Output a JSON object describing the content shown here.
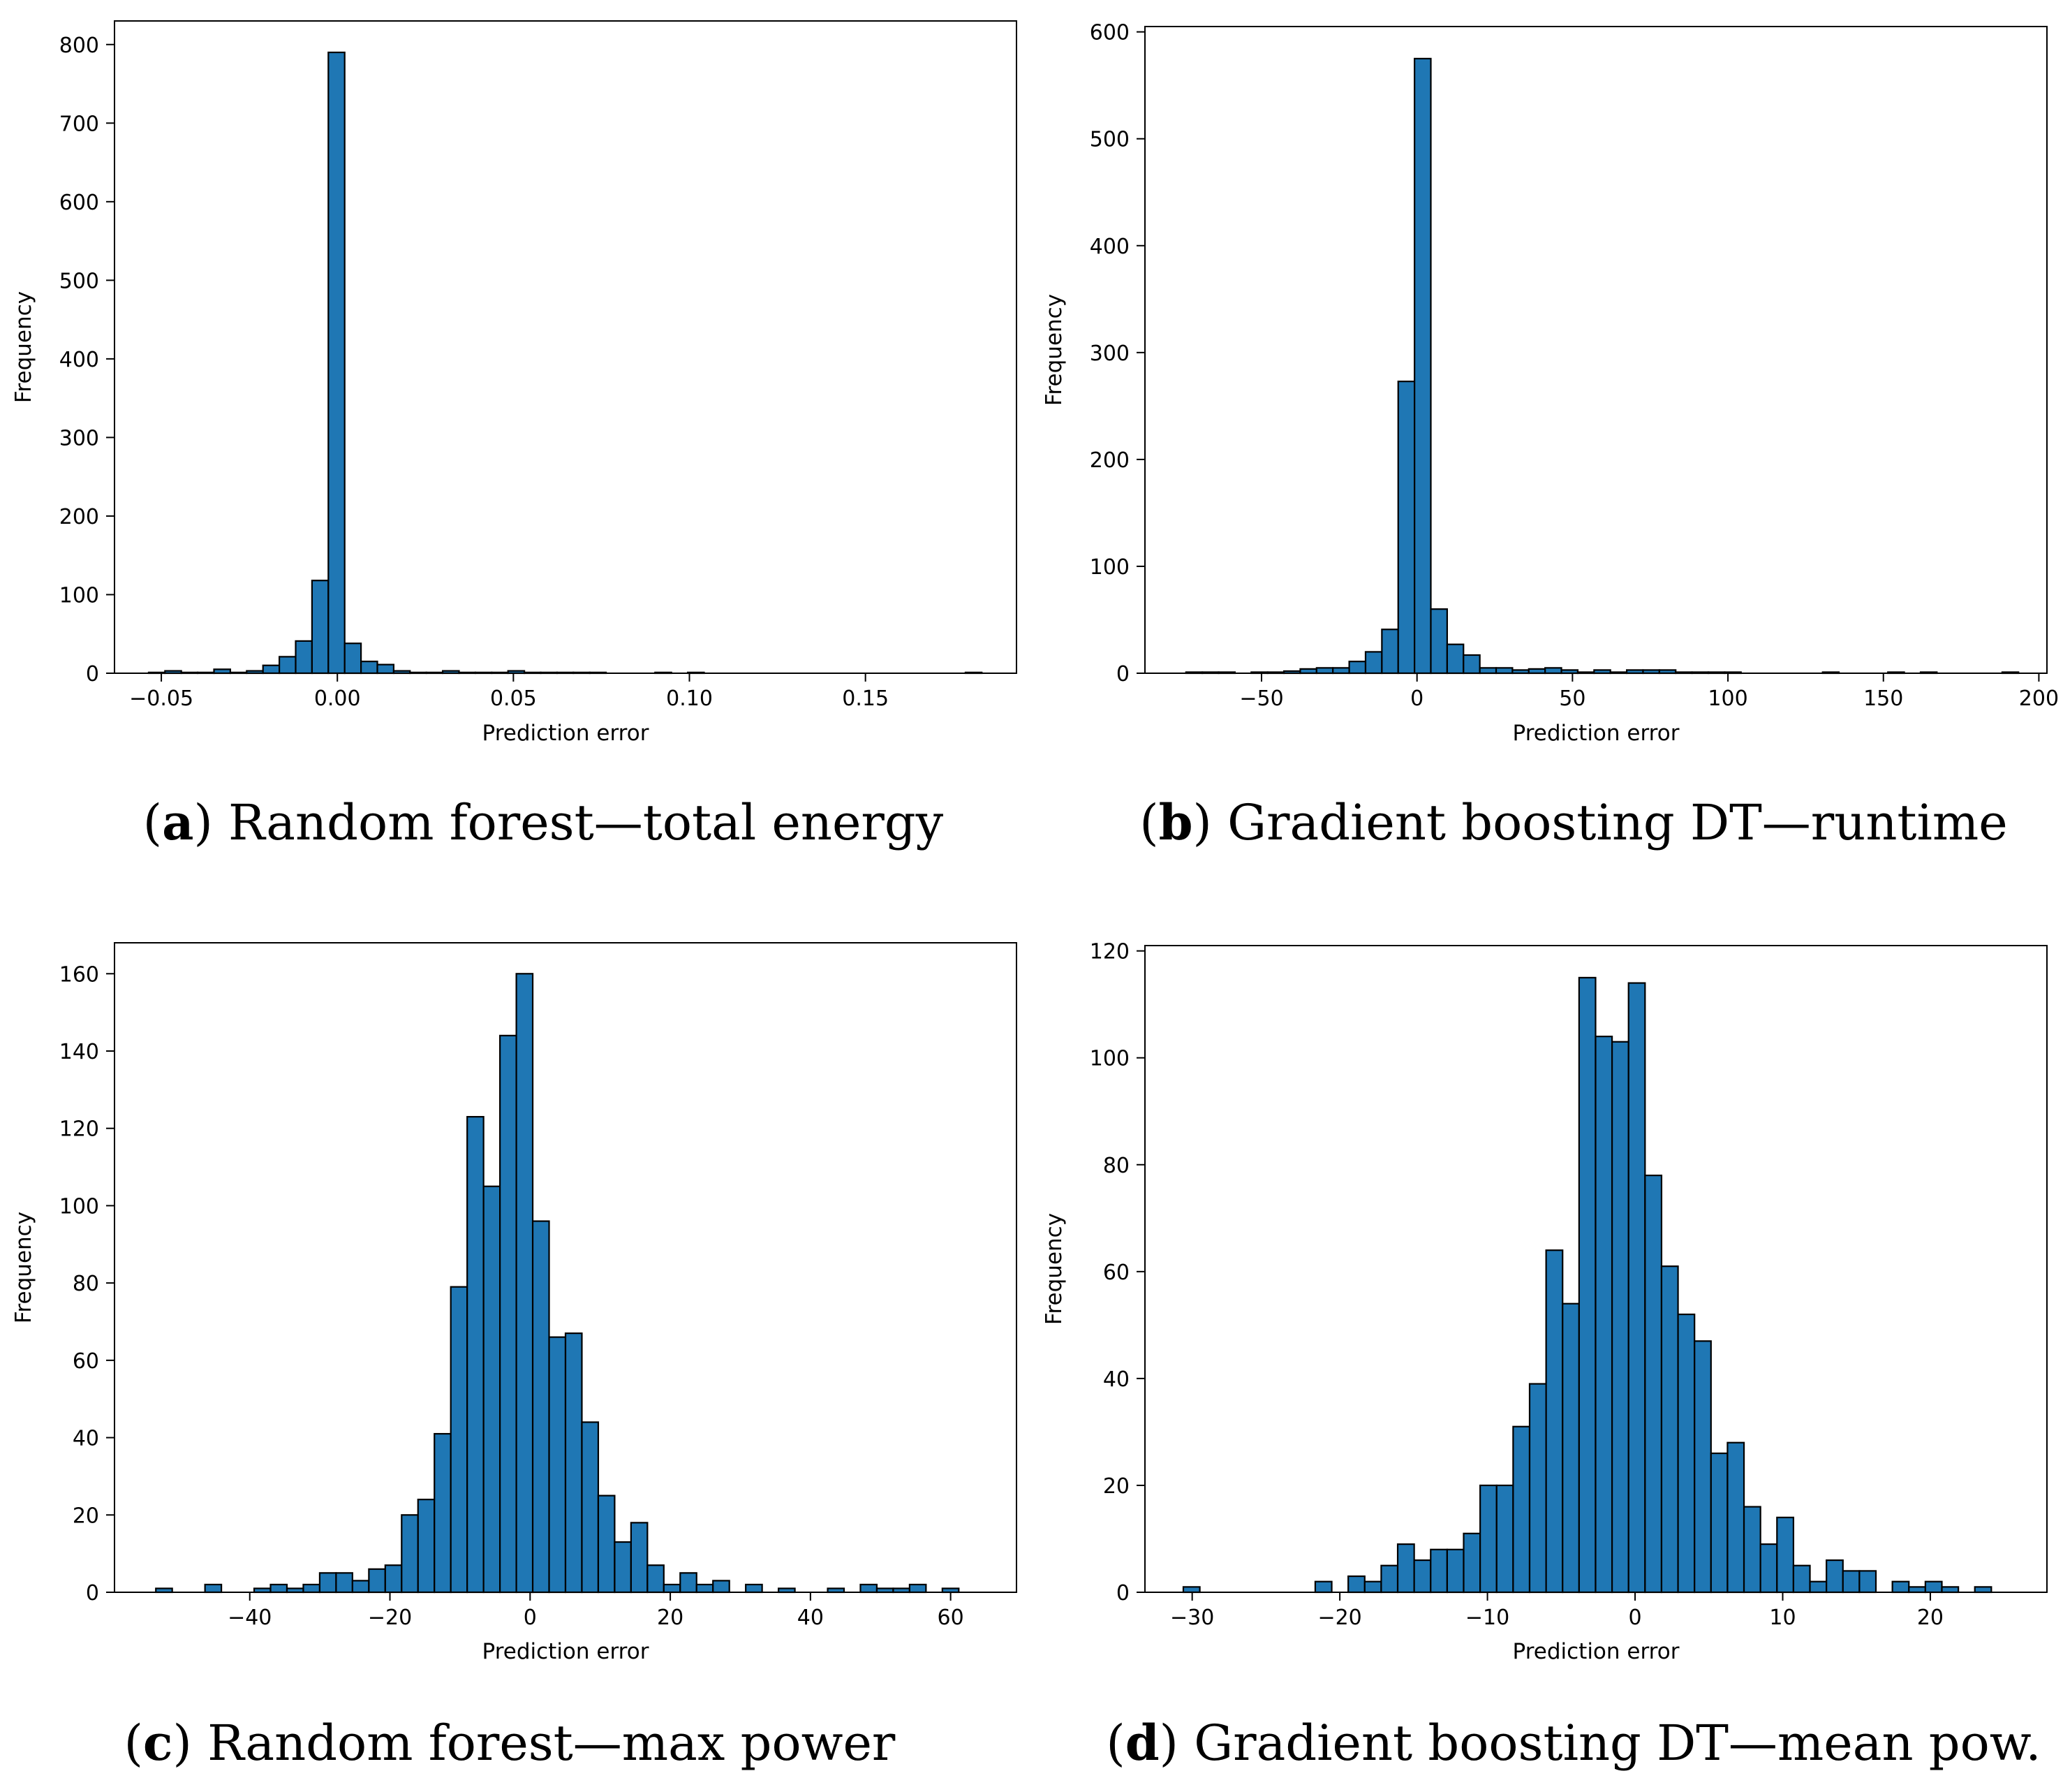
{
  "chart_data": [
    {
      "type": "bar",
      "panel": "a",
      "caption_letter": "a",
      "caption_text": "Random forest—total energy",
      "xlabel": "Prediction error",
      "ylabel": "Frequency",
      "xlim": [
        -0.0633,
        0.1929
      ],
      "ylim": [
        0,
        830
      ],
      "xticks": [
        -0.05,
        0.0,
        0.05,
        0.1,
        0.15
      ],
      "xtick_labels": [
        "−0.05",
        "0.00",
        "0.05",
        "0.10",
        "0.15"
      ],
      "yticks": [
        0,
        100,
        200,
        300,
        400,
        500,
        600,
        700,
        800
      ],
      "ytick_labels": [
        "0",
        "100",
        "200",
        "300",
        "400",
        "500",
        "600",
        "700",
        "800"
      ],
      "bins": {
        "start": -0.0536,
        "width": 0.00464
      },
      "values": [
        1,
        3,
        1,
        1,
        5,
        1,
        3,
        10,
        21,
        41,
        118,
        790,
        38,
        15,
        11,
        3,
        1,
        1,
        3,
        1,
        1,
        1,
        3,
        1,
        1,
        1,
        1,
        1,
        0,
        0,
        0,
        1,
        0,
        1,
        0,
        0,
        0,
        0,
        0,
        0,
        0,
        0,
        0,
        0,
        0,
        0,
        0,
        0,
        0,
        0,
        1
      ]
    },
    {
      "type": "bar",
      "panel": "b",
      "caption_letter": "b",
      "caption_text": "Gradient boosting DT—runtime",
      "xlabel": "Prediction error",
      "ylabel": "Frequency",
      "xlim": [
        -87.5,
        202.6
      ],
      "ylim": [
        0,
        605
      ],
      "xticks": [
        -50,
        0,
        50,
        100,
        150,
        200
      ],
      "xtick_labels": [
        "−50",
        "0",
        "50",
        "100",
        "150",
        "200"
      ],
      "yticks": [
        0,
        100,
        200,
        300,
        400,
        500,
        600
      ],
      "ytick_labels": [
        "0",
        "100",
        "200",
        "300",
        "400",
        "500",
        "600"
      ],
      "bins": {
        "start": -74.3,
        "width": 5.25
      },
      "values": [
        1,
        1,
        1,
        0,
        1,
        1,
        2,
        4,
        5,
        5,
        11,
        20,
        41,
        273,
        575,
        60,
        27,
        17,
        5,
        5,
        3,
        4,
        5,
        3,
        1,
        3,
        1,
        3,
        3,
        3,
        1,
        1,
        1,
        1,
        0,
        0,
        0,
        0,
        0,
        1,
        0,
        0,
        0,
        1,
        0,
        1,
        0,
        0,
        0,
        0,
        1
      ]
    },
    {
      "type": "bar",
      "panel": "c",
      "caption_letter": "c",
      "caption_text": "Random forest—max power",
      "xlabel": "Prediction error",
      "ylabel": "Frequency",
      "xlim": [
        -59.3,
        69.4
      ],
      "ylim": [
        0,
        168
      ],
      "xticks": [
        -40,
        -20,
        0,
        20,
        40,
        60
      ],
      "xtick_labels": [
        "−40",
        "−20",
        "0",
        "20",
        "40",
        "60"
      ],
      "yticks": [
        0,
        20,
        40,
        60,
        80,
        100,
        120,
        140,
        160
      ],
      "ytick_labels": [
        "0",
        "20",
        "40",
        "60",
        "80",
        "100",
        "120",
        "140",
        "160"
      ],
      "bins": {
        "start": -53.4,
        "width": 2.338
      },
      "values": [
        1,
        0,
        0,
        2,
        0,
        0,
        1,
        2,
        1,
        2,
        5,
        5,
        3,
        6,
        7,
        20,
        24,
        41,
        79,
        123,
        105,
        144,
        160,
        96,
        66,
        67,
        44,
        25,
        13,
        18,
        7,
        2,
        5,
        2,
        3,
        0,
        2,
        0,
        1,
        0,
        0,
        1,
        0,
        2,
        1,
        1,
        2,
        0,
        1
      ]
    },
    {
      "type": "bar",
      "panel": "d",
      "caption_letter": "d",
      "caption_text": "Gradient boosting DT—mean pow.",
      "xlabel": "Prediction error",
      "ylabel": "Frequency",
      "xlim": [
        -33.2,
        27.9
      ],
      "ylim": [
        0,
        121
      ],
      "xticks": [
        -30,
        -20,
        -10,
        0,
        10,
        20
      ],
      "xtick_labels": [
        "−30",
        "−20",
        "−10",
        "0",
        "10",
        "20"
      ],
      "yticks": [
        0,
        20,
        40,
        60,
        80,
        100,
        120
      ],
      "ytick_labels": [
        "0",
        "20",
        "40",
        "60",
        "80",
        "100",
        "120"
      ],
      "bins": {
        "start": -30.6,
        "width": 1.117
      },
      "values": [
        1,
        0,
        0,
        0,
        0,
        0,
        0,
        0,
        2,
        0,
        3,
        2,
        5,
        9,
        6,
        8,
        8,
        11,
        20,
        20,
        31,
        39,
        64,
        54,
        115,
        104,
        103,
        114,
        78,
        61,
        52,
        47,
        26,
        28,
        16,
        9,
        14,
        5,
        2,
        6,
        4,
        4,
        0,
        2,
        1,
        2,
        1,
        0,
        1
      ]
    }
  ]
}
